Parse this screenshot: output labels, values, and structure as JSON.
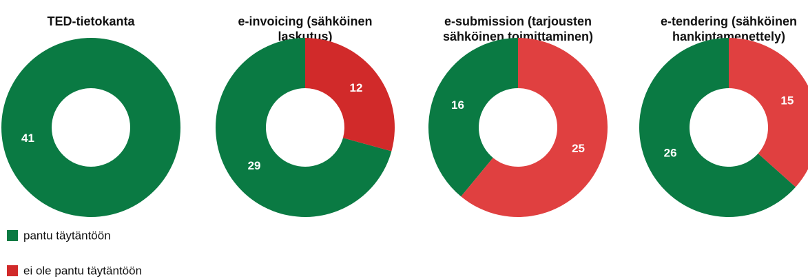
{
  "chart_data": [
    {
      "type": "pie",
      "title": [
        "TED-tietokanta"
      ],
      "categories": [
        "pantu täytäntöön"
      ],
      "values": [
        41
      ],
      "colors": [
        "#0a7a43"
      ]
    },
    {
      "type": "pie",
      "title": [
        "e-invoicing (sähköinen",
        "laskutus)"
      ],
      "categories": [
        "pantu täytäntöön",
        "ei ole pantu täytäntöön"
      ],
      "values": [
        29,
        12
      ],
      "colors": [
        "#0a7a43",
        "#d12a2a"
      ]
    },
    {
      "type": "pie",
      "title": [
        "e-submission (tarjousten",
        "sähköinen toimittaminen)"
      ],
      "categories": [
        "pantu täytäntöön",
        "ei ole pantu täytäntöön"
      ],
      "values": [
        16,
        25
      ],
      "colors": [
        "#0a7a43",
        "#e04040"
      ]
    },
    {
      "type": "pie",
      "title": [
        "e-tendering (sähköinen",
        "hankintamenettely)"
      ],
      "categories": [
        "pantu täytäntöön",
        "ei ole pantu täytäntöön"
      ],
      "values": [
        26,
        15
      ],
      "colors": [
        "#0a7a43",
        "#e04040"
      ]
    }
  ]
}
